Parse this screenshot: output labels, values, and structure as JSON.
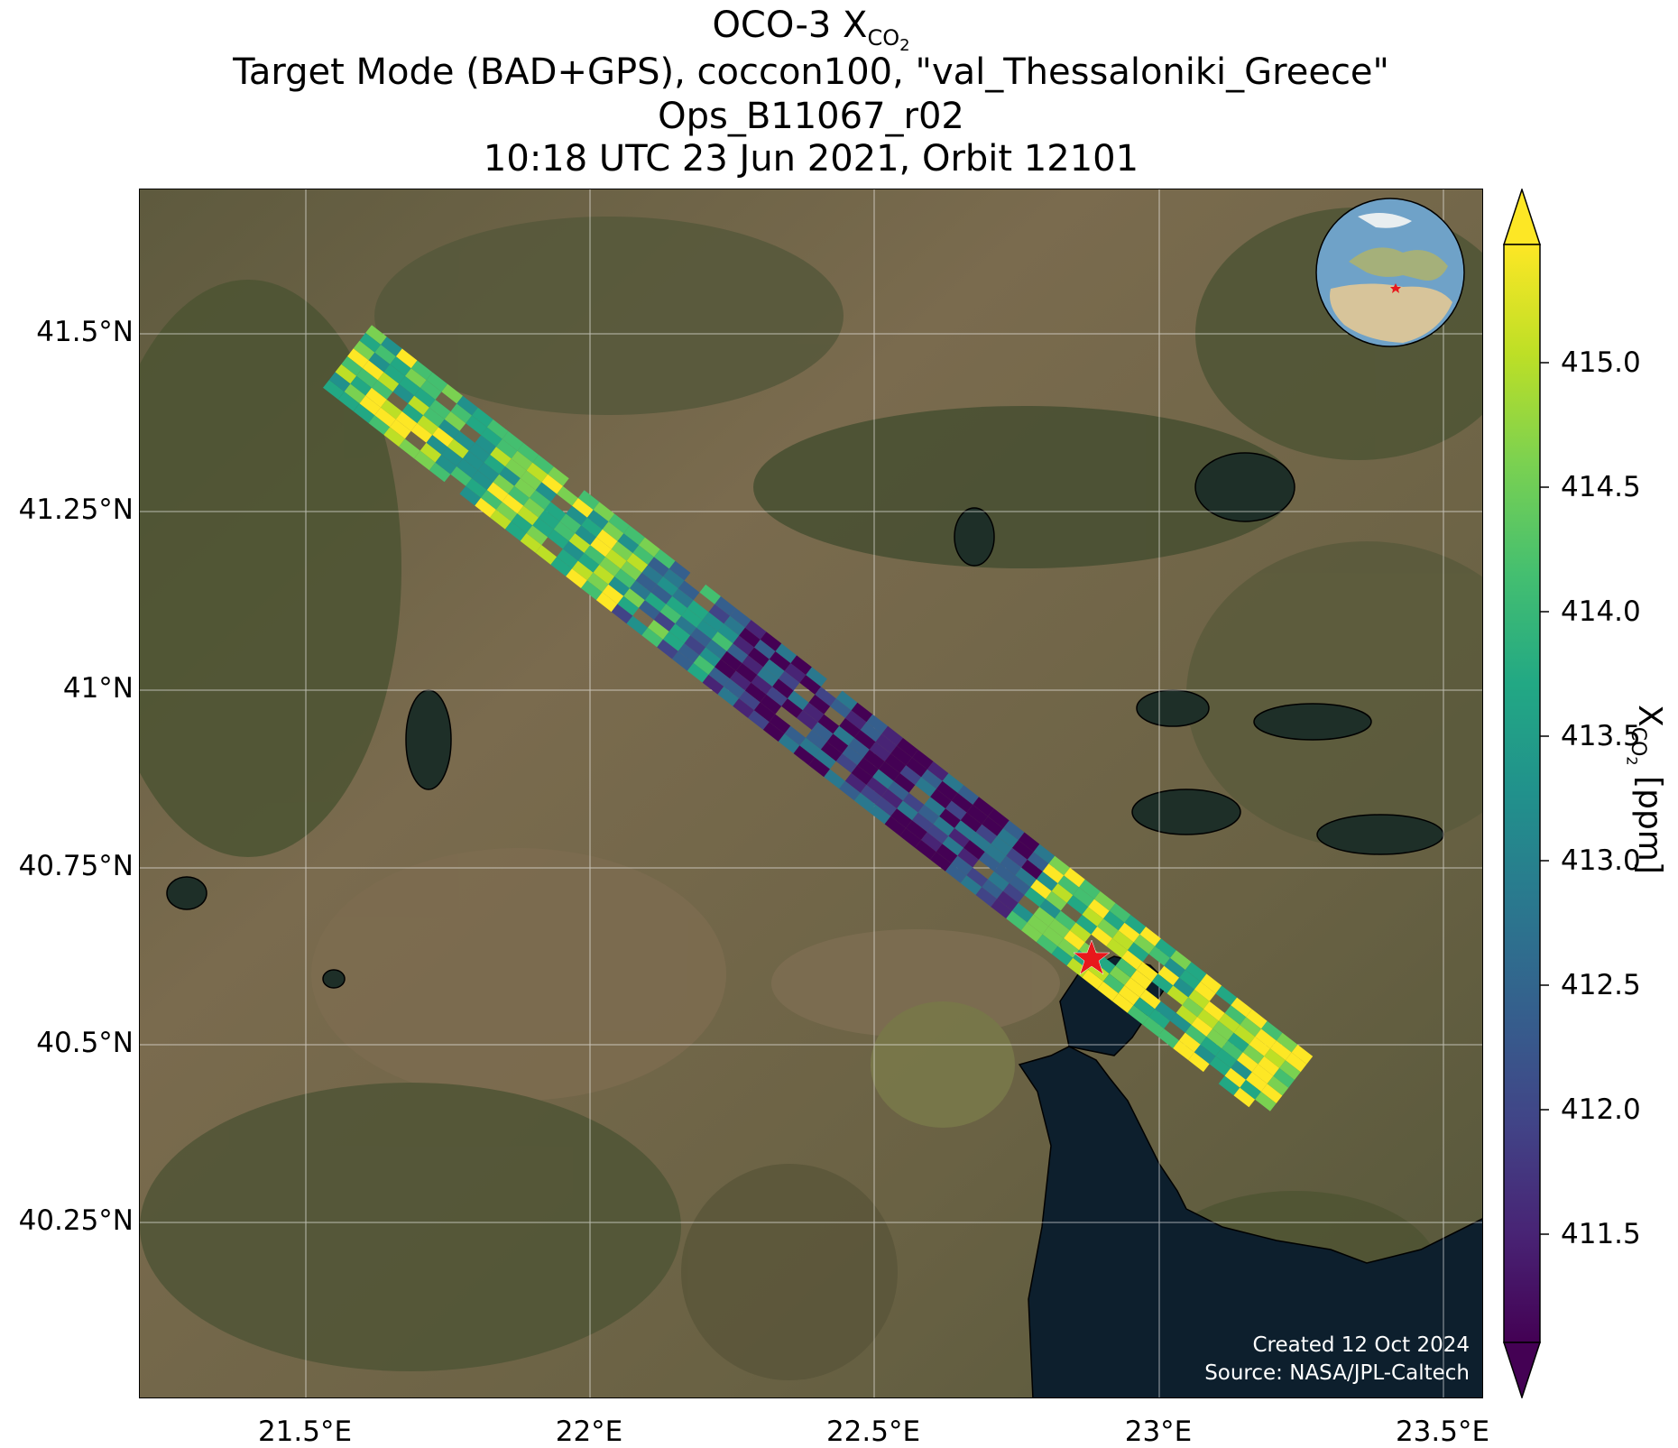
{
  "title": {
    "line1_main": "OCO-3 X",
    "line1_sub": "CO",
    "line1_sub2": "2",
    "line2": "Target Mode (BAD+GPS), coccon100, \"val_Thessaloniki_Greece\"",
    "line3": "Ops_B11067_r02",
    "line4": "10:18 UTC 23 Jun 2021, Orbit 12101"
  },
  "map": {
    "lat_ticks": [
      "41.5°N",
      "41.25°N",
      "41°N",
      "40.75°N",
      "40.5°N",
      "40.25°N"
    ],
    "lon_ticks": [
      "21.5°E",
      "22°E",
      "22.5°E",
      "23°E",
      "23.5°E"
    ],
    "target_marker": "red-star",
    "inset_globe": "globe-europe-africa",
    "colors": {
      "sea": "#0d1f2d",
      "land": "#6e6048",
      "forest": "#4a5230",
      "grid": "#ffffff",
      "marker": "#e8181c"
    }
  },
  "colorbar": {
    "label_main": "X",
    "label_sub": "CO",
    "label_sub2": "2",
    "label_unit": " [ppm]",
    "ticks": [
      "415.0",
      "414.5",
      "414.0",
      "413.5",
      "413.0",
      "412.5",
      "412.0",
      "411.5"
    ],
    "colormap": "viridis",
    "extend": "both"
  },
  "footer": {
    "created": "Created 12 Oct 2024",
    "source": "Source: NASA/JPL-Caltech"
  }
}
